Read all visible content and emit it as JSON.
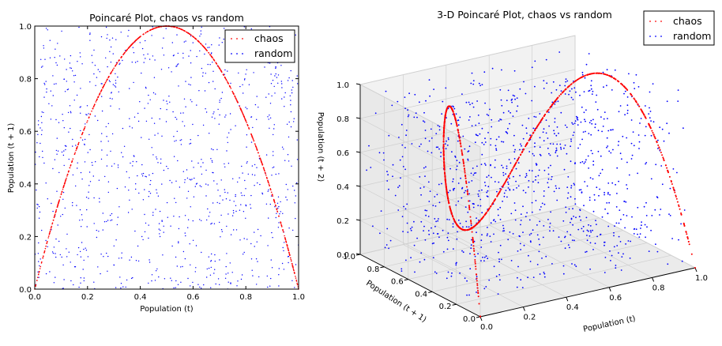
{
  "chart_data": [
    {
      "type": "scatter",
      "title": "Poincaré Plot, chaos vs random",
      "xlabel": "Population (t)",
      "ylabel": "Population (t + 1)",
      "xlim": [
        0,
        1
      ],
      "ylim": [
        0,
        1
      ],
      "xticks": [
        "0.0",
        "0.2",
        "0.4",
        "0.6",
        "0.8",
        "1.0"
      ],
      "yticks": [
        "0.0",
        "0.2",
        "0.4",
        "0.6",
        "0.8",
        "1.0"
      ],
      "legend_position": "top-right",
      "series": [
        {
          "name": "chaos",
          "color": "#ff0000",
          "description_of_relation": "y = 4x(1-x)",
          "x": [
            0.0,
            0.02,
            0.04,
            0.06,
            0.08,
            0.1,
            0.12,
            0.14,
            0.16,
            0.18,
            0.2,
            0.22,
            0.24,
            0.26,
            0.28,
            0.3,
            0.32,
            0.34,
            0.36,
            0.38,
            0.4,
            0.42,
            0.44,
            0.46,
            0.48,
            0.5,
            0.52,
            0.54,
            0.56,
            0.58,
            0.6,
            0.62,
            0.64,
            0.66,
            0.68,
            0.7,
            0.72,
            0.74,
            0.76,
            0.78,
            0.8,
            0.82,
            0.84,
            0.86,
            0.88,
            0.9,
            0.92,
            0.94,
            0.96,
            0.98,
            1.0
          ],
          "y": [
            0.0,
            0.078,
            0.154,
            0.226,
            0.294,
            0.36,
            0.422,
            0.482,
            0.538,
            0.59,
            0.64,
            0.686,
            0.73,
            0.77,
            0.806,
            0.84,
            0.87,
            0.898,
            0.922,
            0.942,
            0.96,
            0.974,
            0.986,
            0.994,
            0.998,
            1.0,
            0.998,
            0.994,
            0.986,
            0.974,
            0.96,
            0.942,
            0.922,
            0.898,
            0.87,
            0.84,
            0.806,
            0.77,
            0.73,
            0.686,
            0.64,
            0.59,
            0.538,
            0.482,
            0.422,
            0.36,
            0.294,
            0.226,
            0.154,
            0.078,
            0.0
          ]
        },
        {
          "name": "random",
          "color": "#0000ff",
          "distribution": "uniform on [0,1] x [0,1]",
          "count": 1000
        }
      ]
    },
    {
      "type": "scatter",
      "title": "3-D Poincaré Plot, chaos vs random",
      "xlabel": "Population (t)",
      "ylabel": "Population (t + 1)",
      "zlabel": "Population (t + 2)",
      "xlim": [
        0,
        1
      ],
      "ylim": [
        0,
        1
      ],
      "zlim": [
        0,
        1
      ],
      "xticks": [
        "0.0",
        "0.2",
        "0.4",
        "0.6",
        "0.8",
        "1.0"
      ],
      "yticks": [
        "0.0",
        "0.2",
        "0.4",
        "0.6",
        "0.8",
        "1.0"
      ],
      "zticks": [
        "0.0",
        "0.2",
        "0.4",
        "0.6",
        "0.8",
        "1.0"
      ],
      "legend_position": "top-right",
      "series": [
        {
          "name": "chaos",
          "color": "#ff0000",
          "description_of_relation": "y = 4x(1-x), z = 4y(1-y)",
          "x": [
            0.0,
            0.02,
            0.04,
            0.06,
            0.08,
            0.1,
            0.12,
            0.14,
            0.16,
            0.18,
            0.2,
            0.22,
            0.24,
            0.26,
            0.28,
            0.3,
            0.32,
            0.34,
            0.36,
            0.38,
            0.4,
            0.42,
            0.44,
            0.46,
            0.48,
            0.5,
            0.52,
            0.54,
            0.56,
            0.58,
            0.6,
            0.62,
            0.64,
            0.66,
            0.68,
            0.7,
            0.72,
            0.74,
            0.76,
            0.78,
            0.8,
            0.82,
            0.84,
            0.86,
            0.88,
            0.9,
            0.92,
            0.94,
            0.96,
            0.98,
            1.0
          ]
        },
        {
          "name": "random",
          "color": "#0000ff",
          "distribution": "uniform on [0,1]^3",
          "count": 1000
        }
      ]
    }
  ]
}
